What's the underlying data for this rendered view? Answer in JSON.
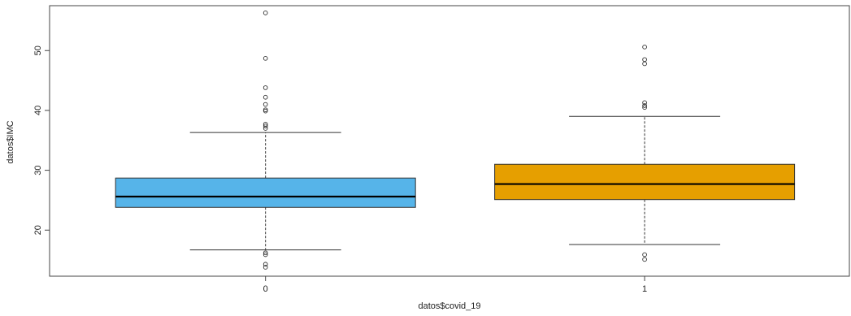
{
  "chart_data": {
    "type": "boxplot",
    "xlabel": "datos$covid_19",
    "ylabel": "datos$IMC",
    "ylim": [
      12.3,
      57.5
    ],
    "yticks": [
      20,
      30,
      40,
      50
    ],
    "yticks_labels": [
      "20",
      "30",
      "40",
      "50"
    ],
    "categories": [
      "0",
      "1"
    ],
    "colors": {
      "0": "#56b4e9",
      "1": "#e69f00",
      "frame": "#444444",
      "median": "#000000"
    },
    "boxes": [
      {
        "category": "0",
        "whisker_low": 16.7,
        "q1": 23.8,
        "median": 25.6,
        "q3": 28.7,
        "whisker_high": 36.3,
        "outliers": [
          56.3,
          48.7,
          43.8,
          42.2,
          41.0,
          40.1,
          39.9,
          37.7,
          37.4,
          37.0,
          16.2,
          15.9,
          14.3,
          13.8
        ]
      },
      {
        "category": "1",
        "whisker_low": 17.6,
        "q1": 25.1,
        "median": 27.7,
        "q3": 31.0,
        "whisker_high": 39.0,
        "outliers": [
          50.6,
          48.5,
          47.8,
          41.3,
          40.8,
          40.5,
          15.9,
          15.1
        ]
      }
    ]
  }
}
